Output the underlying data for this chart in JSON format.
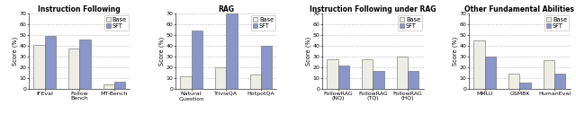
{
  "panels": [
    {
      "title": "Instruction Following",
      "categories": [
        "IFEval",
        "Follow\nBench",
        "MT-Bench"
      ],
      "base": [
        41,
        38,
        4
      ],
      "sft": [
        49,
        46,
        7
      ],
      "ylim": [
        0,
        70
      ],
      "yticks": [
        0,
        10,
        20,
        30,
        40,
        50,
        60,
        70
      ]
    },
    {
      "title": "RAG",
      "categories": [
        "Natural\nQuestion",
        "TriviaQA",
        "HotpotQA"
      ],
      "base": [
        12,
        20,
        13
      ],
      "sft": [
        54,
        70,
        40
      ],
      "ylim": [
        0,
        70
      ],
      "yticks": [
        0,
        10,
        20,
        30,
        40,
        50,
        60,
        70
      ]
    },
    {
      "title": "Instruction Following under RAG",
      "categories": [
        "FollowRAG\n(NQ)",
        "FollowRAG\n(TQ)",
        "FollowRAG\n(HQ)"
      ],
      "base": [
        28,
        28,
        30
      ],
      "sft": [
        22,
        17,
        17
      ],
      "ylim": [
        0,
        70
      ],
      "yticks": [
        0,
        10,
        20,
        30,
        40,
        50,
        60,
        70
      ]
    },
    {
      "title": "Other Fundamental Abilities",
      "categories": [
        "MMLU",
        "GSMBK",
        "HumanEval"
      ],
      "base": [
        45,
        14,
        27
      ],
      "sft": [
        30,
        6,
        14
      ],
      "ylim": [
        0,
        70
      ],
      "yticks": [
        0,
        10,
        20,
        30,
        40,
        50,
        60,
        70
      ]
    }
  ],
  "base_color": "#eeede5",
  "sft_color": "#8a96c8",
  "base_edge": "#666666",
  "sft_edge": "#666666",
  "ylabel": "Score (%)",
  "bar_width": 0.32,
  "grid_color": "#bbbbbb",
  "title_fontsize": 5.5,
  "tick_fontsize": 4.5,
  "label_fontsize": 4.8,
  "legend_fontsize": 4.8
}
